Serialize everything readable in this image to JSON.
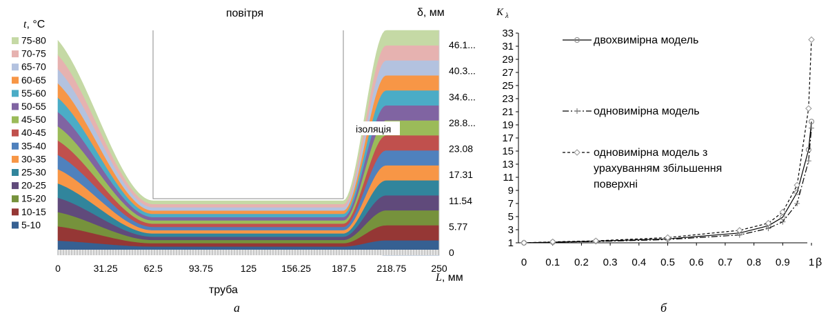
{
  "chart_data": [
    {
      "type": "contour",
      "panel_label": "а",
      "legend_title_symbol": "t",
      "legend_title_unit": ", °C",
      "legend_items": [
        {
          "label": "75-80",
          "color": "#C5D9A5"
        },
        {
          "label": "70-75",
          "color": "#E6B2B0"
        },
        {
          "label": "65-70",
          "color": "#B3C2DF"
        },
        {
          "label": "60-65",
          "color": "#F79646"
        },
        {
          "label": "55-60",
          "color": "#4BACC6"
        },
        {
          "label": "50-55",
          "color": "#8064A2"
        },
        {
          "label": "45-50",
          "color": "#9BBB59"
        },
        {
          "label": "40-45",
          "color": "#C0504D"
        },
        {
          "label": "35-40",
          "color": "#4F81BD"
        },
        {
          "label": "30-35",
          "color": "#F79646"
        },
        {
          "label": "25-30",
          "color": "#31859C"
        },
        {
          "label": "20-25",
          "color": "#604A7B"
        },
        {
          "label": "15-20",
          "color": "#76923C"
        },
        {
          "label": "10-15",
          "color": "#953735"
        },
        {
          "label": "5-10",
          "color": "#366092"
        }
      ],
      "x_ticks": [
        "0",
        "31.25",
        "62.5",
        "93.75",
        "125",
        "156.25",
        "187.5",
        "218.75",
        "250"
      ],
      "x_label_symbol": "L",
      "x_label_unit": ", мм",
      "xlim": [
        0,
        250
      ],
      "y_ticks": [
        "0",
        "5.77",
        "11.54",
        "17.31",
        "23.08",
        "28.8...",
        "34.6...",
        "40.3...",
        "46.1..."
      ],
      "y_tick_values": [
        0,
        5.77,
        11.54,
        17.31,
        23.08,
        28.85,
        34.62,
        40.39,
        46.16
      ],
      "y_label_symbol": "δ",
      "y_label_unit": ", мм",
      "ylim": [
        0,
        50
      ],
      "fin_x_range": [
        62.5,
        187.5
      ],
      "fin_base_level": 11.54,
      "annotations": {
        "top": "повітря",
        "bottom": "труба",
        "insulation": "ізоляція"
      }
    },
    {
      "type": "line",
      "panel_label": "б",
      "ylabel_symbol": "K",
      "ylabel_subscript": "λ",
      "xlabel": "β",
      "x_ticks": [
        "0",
        "0.1",
        "0.2",
        "0.3",
        "0.4",
        "0.5",
        "0.6",
        "0.7",
        "0.8",
        "0.9",
        "1"
      ],
      "y_ticks": [
        "1",
        "3",
        "5",
        "7",
        "9",
        "11",
        "13",
        "15",
        "17",
        "19",
        "21",
        "23",
        "25",
        "27",
        "29",
        "31",
        "33"
      ],
      "xlim": [
        0,
        1
      ],
      "ylim": [
        1,
        33
      ],
      "series": [
        {
          "name": "двохвимірна модель",
          "line_style": "solid",
          "marker": "circle",
          "x": [
            0,
            0.1,
            0.25,
            0.5,
            0.75,
            0.85,
            0.9,
            0.95,
            0.99,
            1.0
          ],
          "y": [
            1.0,
            1.1,
            1.25,
            1.6,
            2.5,
            3.6,
            4.9,
            8.7,
            15.2,
            19.5
          ]
        },
        {
          "name": "одновимірна модель",
          "line_style": "dash-dot",
          "marker": "plus",
          "x": [
            0,
            0.1,
            0.25,
            0.5,
            0.75,
            0.85,
            0.9,
            0.95,
            0.99,
            1.0
          ],
          "y": [
            1.0,
            1.1,
            1.2,
            1.5,
            2.2,
            3.2,
            4.2,
            7.0,
            13.5,
            18.5
          ]
        },
        {
          "name": "одновимірна модель з урахуванням збільшення поверхні",
          "name_lines": [
            "одновимірна модель з",
            "урахуванням збільшення",
            "поверхні"
          ],
          "line_style": "short-dash",
          "marker": "diamond",
          "x": [
            0,
            0.1,
            0.25,
            0.5,
            0.75,
            0.85,
            0.9,
            0.95,
            0.99,
            1.0
          ],
          "y": [
            1.0,
            1.15,
            1.3,
            1.8,
            2.9,
            4.0,
            5.7,
            9.8,
            21.5,
            32.0
          ]
        }
      ]
    }
  ]
}
